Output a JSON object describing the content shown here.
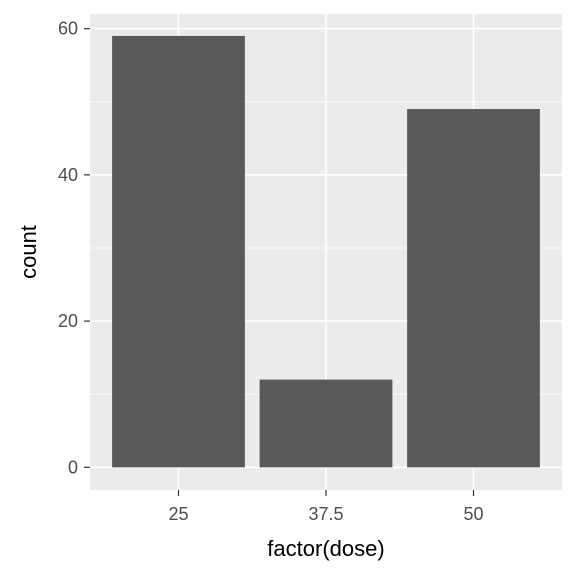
{
  "chart_data": {
    "type": "bar",
    "categories": [
      "25",
      "37.5",
      "50"
    ],
    "values": [
      59,
      12,
      49
    ],
    "xlabel": "factor(dose)",
    "ylabel": "count",
    "ylim": [
      0,
      62
    ],
    "yticks": [
      0,
      20,
      40,
      60
    ],
    "grid": true,
    "colors": {
      "panel_background": "#ebebeb",
      "grid_major": "#ffffff",
      "bar_fill": "#595959",
      "tick_mark": "#333333"
    }
  }
}
